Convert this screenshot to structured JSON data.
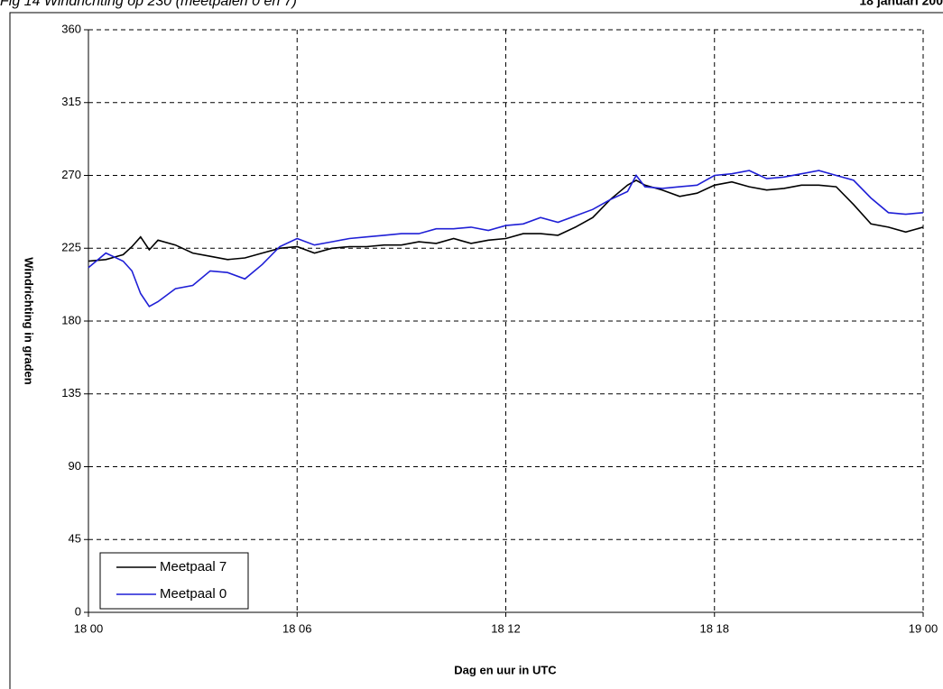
{
  "chart_data": {
    "type": "line",
    "title": "Fig 14 Windrichting op 230 (meetpalen 0 en 7)",
    "date": "18 januari 200",
    "x_label": "Dag en uur in UTC",
    "y_label": "Windrichting in graden",
    "x": [
      0,
      0.5,
      1,
      1.25,
      1.5,
      1.75,
      2,
      2.5,
      3,
      3.5,
      4,
      4.5,
      5,
      5.5,
      6,
      6.5,
      7,
      7.5,
      8,
      8.5,
      9,
      9.5,
      10,
      10.5,
      11,
      11.5,
      12,
      12.5,
      13,
      13.5,
      14,
      14.5,
      15,
      15.5,
      15.75,
      16,
      16.5,
      17,
      17.5,
      18,
      18.5,
      19,
      19.5,
      20,
      20.5,
      21,
      21.5,
      22,
      22.5,
      23,
      23.5,
      24
    ],
    "series": [
      {
        "name": "Meetpaal 7",
        "color": "#000000",
        "values": [
          217,
          218,
          221,
          226,
          232,
          224,
          230,
          227,
          222,
          220,
          218,
          219,
          222,
          225,
          226,
          222,
          225,
          226,
          226,
          227,
          227,
          229,
          228,
          231,
          228,
          230,
          231,
          234,
          234,
          233,
          238,
          244,
          255,
          264,
          267,
          264,
          261,
          257,
          259,
          264,
          266,
          263,
          261,
          262,
          264,
          264,
          263,
          252,
          240,
          238,
          235,
          238
        ]
      },
      {
        "name": "Meetpaal 0",
        "color": "#1f1fd6",
        "values": [
          213,
          222,
          217,
          211,
          197,
          189,
          192,
          200,
          202,
          211,
          210,
          206,
          215,
          226,
          231,
          227,
          229,
          231,
          232,
          233,
          234,
          234,
          237,
          237,
          238,
          236,
          239,
          240,
          244,
          241,
          245,
          249,
          255,
          260,
          270,
          263,
          262,
          263,
          264,
          270,
          271,
          273,
          268,
          269,
          271,
          273,
          270,
          267,
          256,
          247,
          246,
          247
        ]
      }
    ],
    "xlim": [
      0,
      24
    ],
    "xticks": [
      {
        "value": 0,
        "label": "18 00"
      },
      {
        "value": 6,
        "label": "18 06"
      },
      {
        "value": 12,
        "label": "18 12"
      },
      {
        "value": 18,
        "label": "18 18"
      },
      {
        "value": 24,
        "label": "19 00"
      }
    ],
    "ylim": [
      0,
      360
    ],
    "yticks": [
      0,
      45,
      90,
      135,
      180,
      225,
      270,
      315,
      360
    ],
    "grid": true,
    "legend": "lower-left"
  }
}
